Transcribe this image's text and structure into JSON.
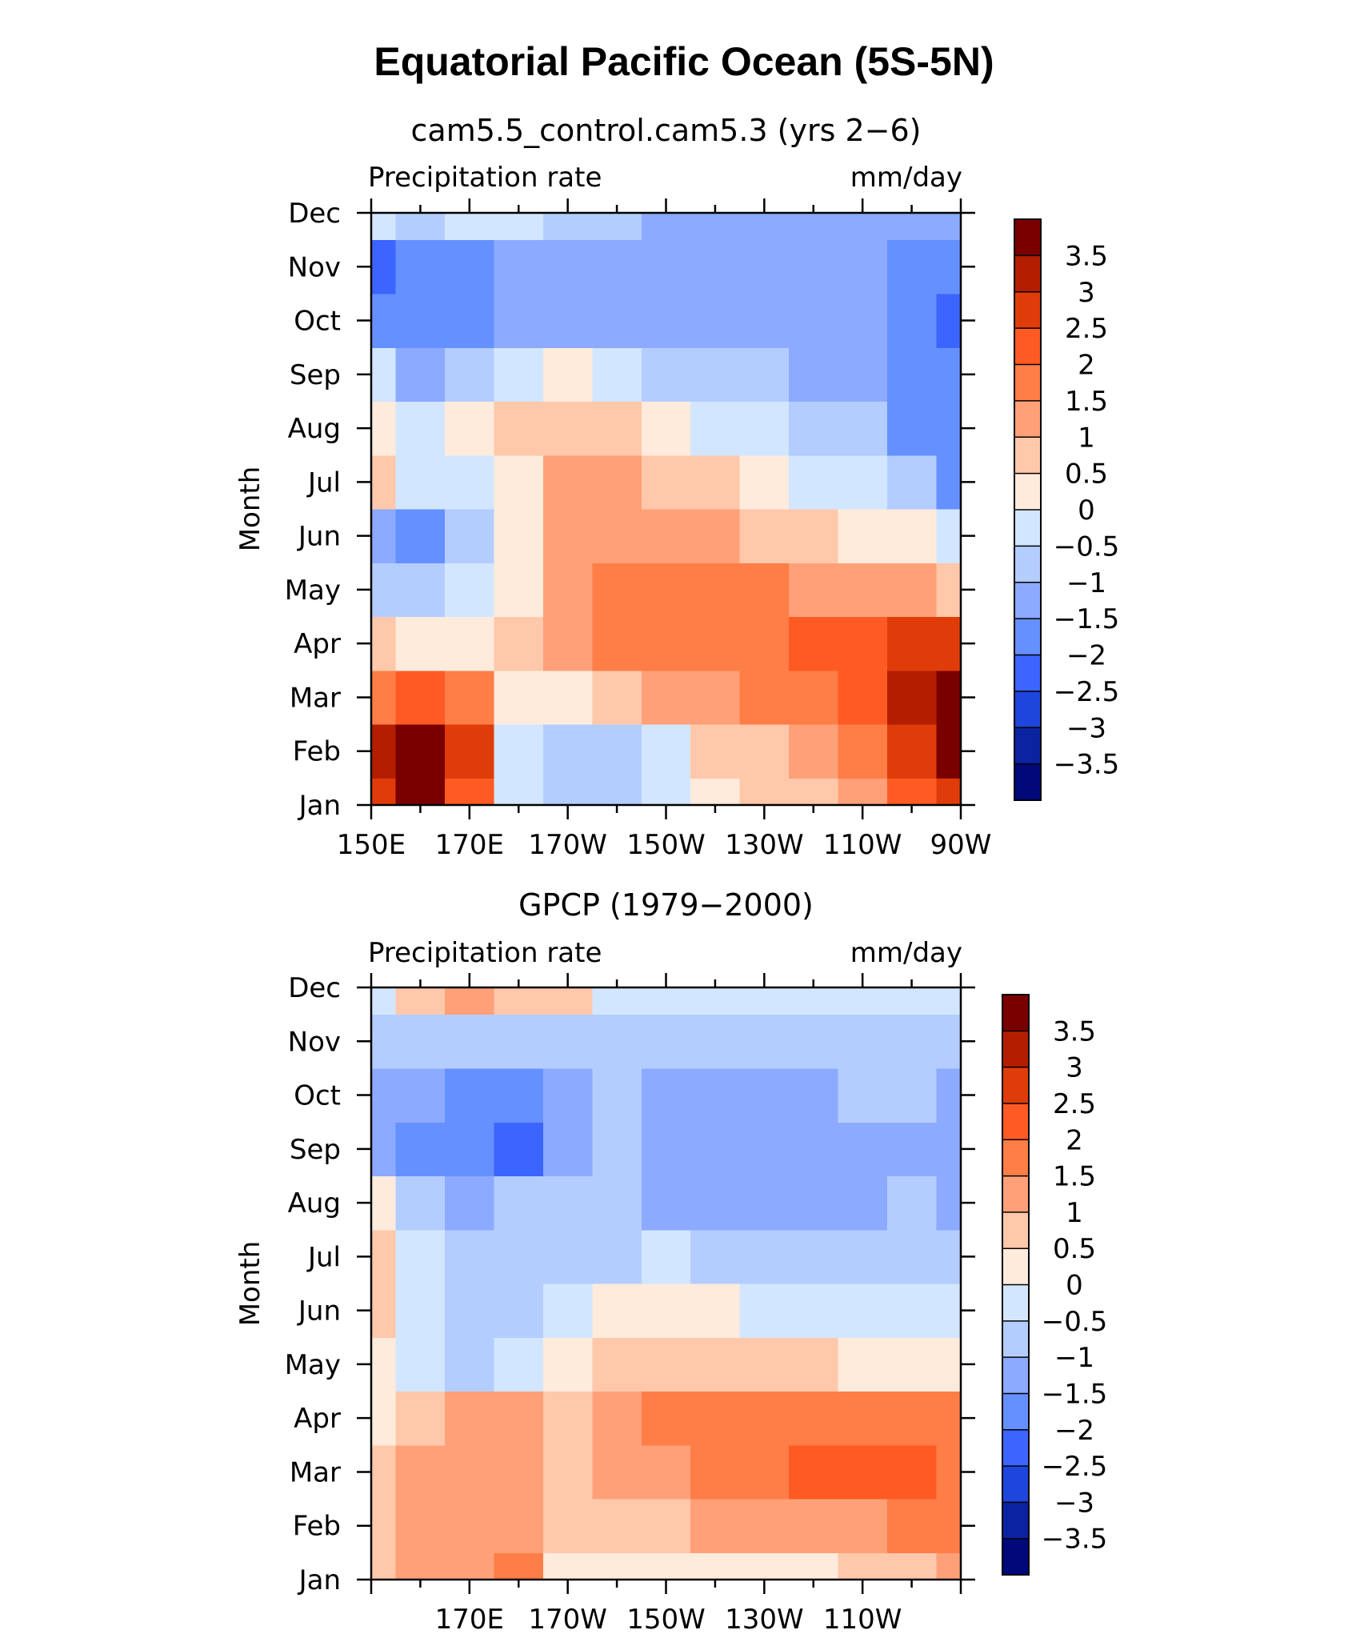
{
  "figure": {
    "title": "Equatorial Pacific Ocean (5S-5N)"
  },
  "colorbar": {
    "levels": [
      "3.5",
      "3",
      "2.5",
      "2",
      "1.5",
      "1",
      "0.5",
      "0",
      "−0.5",
      "−1",
      "−1.5",
      "−2",
      "−2.5",
      "−3",
      "−3.5"
    ],
    "colors": [
      "#7a0000",
      "#b41e00",
      "#e03c0a",
      "#ff5a23",
      "#ff7d46",
      "#ffa078",
      "#ffc8aa",
      "#ffebdc",
      "#d2e6ff",
      "#b4cdff",
      "#8caaff",
      "#6491ff",
      "#3c64ff",
      "#1e46dc",
      "#0a23a0",
      "#00087a"
    ]
  },
  "chart_data": [
    {
      "type": "heatmap",
      "title": "cam5.5_control.cam5.3 (yrs 2−6)",
      "left_label": "Precipitation rate",
      "right_label": "mm/day",
      "ylabel": "Month",
      "xlabel": "",
      "y_ticks": [
        "Jan",
        "Feb",
        "Mar",
        "Apr",
        "May",
        "Jun",
        "Jul",
        "Aug",
        "Sep",
        "Oct",
        "Nov",
        "Dec"
      ],
      "x_ticks": [
        "150E",
        "170E",
        "170W",
        "150W",
        "130W",
        "110W",
        "90W"
      ],
      "x": [
        150,
        160,
        170,
        180,
        190,
        200,
        210,
        220,
        230,
        240,
        250,
        260,
        270
      ],
      "y": [
        "Jan",
        "Feb",
        "Mar",
        "Apr",
        "May",
        "Jun",
        "Jul",
        "Aug",
        "Sep",
        "Oct",
        "Nov",
        "Dec"
      ],
      "values": [
        [
          2.6,
          3.6,
          2.4,
          -0.2,
          -0.6,
          -0.8,
          -0.3,
          0.2,
          0.5,
          0.9,
          1.3,
          2.0,
          2.6
        ],
        [
          3.0,
          3.8,
          2.6,
          -0.2,
          -0.9,
          -1.0,
          -0.3,
          0.5,
          0.9,
          1.3,
          1.7,
          2.6,
          3.6
        ],
        [
          1.8,
          2.2,
          1.6,
          0.4,
          0.2,
          0.6,
          1.0,
          1.4,
          1.6,
          1.9,
          2.4,
          3.0,
          3.7
        ],
        [
          0.6,
          0.4,
          0.3,
          0.8,
          1.0,
          1.6,
          1.9,
          1.9,
          1.9,
          2.0,
          2.3,
          2.6,
          2.6
        ],
        [
          -0.7,
          -0.6,
          -0.2,
          0.3,
          1.3,
          1.7,
          1.8,
          1.8,
          1.7,
          1.4,
          1.2,
          1.0,
          0.6
        ],
        [
          -1.1,
          -1.6,
          -0.7,
          0.3,
          1.2,
          1.3,
          1.2,
          1.0,
          0.8,
          0.5,
          0.2,
          0.2,
          -0.3
        ],
        [
          0.6,
          -0.3,
          -0.5,
          0.2,
          1.0,
          1.1,
          0.9,
          0.5,
          0.1,
          -0.1,
          -0.4,
          -0.7,
          -1.6
        ],
        [
          0.2,
          -0.3,
          0.4,
          0.7,
          0.8,
          0.6,
          0.3,
          -0.2,
          -0.5,
          -0.7,
          -1.0,
          -1.7,
          -2.0
        ],
        [
          -0.3,
          -1.4,
          -0.7,
          -0.1,
          0.1,
          -0.3,
          -0.7,
          -0.9,
          -1.0,
          -1.1,
          -1.2,
          -1.9,
          -2.0
        ],
        [
          -1.9,
          -2.0,
          -1.6,
          -1.2,
          -1.2,
          -1.3,
          -1.3,
          -1.3,
          -1.3,
          -1.3,
          -1.4,
          -1.8,
          -2.1
        ],
        [
          -2.1,
          -1.9,
          -1.6,
          -1.4,
          -1.3,
          -1.2,
          -1.2,
          -1.2,
          -1.3,
          -1.3,
          -1.3,
          -1.7,
          -1.9
        ],
        [
          -0.5,
          -0.7,
          -0.3,
          -0.5,
          -0.8,
          -1.0,
          -1.1,
          -1.2,
          -1.2,
          -1.2,
          -1.2,
          -1.2,
          -1.3
        ]
      ],
      "xlim": [
        150,
        270
      ],
      "grid": false,
      "colorbar": "right"
    },
    {
      "type": "heatmap",
      "title": "GPCP (1979−2000)",
      "left_label": "Precipitation rate",
      "right_label": "mm/day",
      "ylabel": "Month",
      "xlabel": "",
      "y_ticks": [
        "Jan",
        "Feb",
        "Mar",
        "Apr",
        "May",
        "Jun",
        "Jul",
        "Aug",
        "Sep",
        "Oct",
        "Nov",
        "Dec"
      ],
      "x_ticks": [
        "170E",
        "170W",
        "150W",
        "130W",
        "110W"
      ],
      "x": [
        150,
        160,
        170,
        180,
        190,
        200,
        210,
        220,
        230,
        240,
        250,
        260,
        270
      ],
      "y": [
        "Jan",
        "Feb",
        "Mar",
        "Apr",
        "May",
        "Jun",
        "Jul",
        "Aug",
        "Sep",
        "Oct",
        "Nov",
        "Dec"
      ],
      "values": [
        [
          0.8,
          1.1,
          1.4,
          1.7,
          0.3,
          0.3,
          0.2,
          0.1,
          0.2,
          0.3,
          0.5,
          0.8,
          1.0
        ],
        [
          0.9,
          1.2,
          1.1,
          1.2,
          0.6,
          0.7,
          0.8,
          1.0,
          1.1,
          1.2,
          1.3,
          1.5,
          1.6
        ],
        [
          0.8,
          1.3,
          1.4,
          1.1,
          0.8,
          1.0,
          1.3,
          1.6,
          1.8,
          2.0,
          2.1,
          2.0,
          1.8
        ],
        [
          0.3,
          0.6,
          1.1,
          1.0,
          0.9,
          1.0,
          1.5,
          1.7,
          1.8,
          1.9,
          1.8,
          1.8,
          1.8
        ],
        [
          0.2,
          -0.2,
          -0.6,
          -0.4,
          0.2,
          0.5,
          0.6,
          0.7,
          0.8,
          0.6,
          0.4,
          0.4,
          0.2
        ],
        [
          0.6,
          -0.2,
          -0.8,
          -0.9,
          -0.4,
          0.2,
          0.2,
          0.0,
          -0.2,
          -0.3,
          -0.3,
          -0.4,
          -0.3
        ],
        [
          0.7,
          -0.2,
          -0.8,
          -0.8,
          -0.9,
          -0.7,
          -0.5,
          -0.7,
          -0.8,
          -0.8,
          -0.8,
          -0.9,
          -0.9
        ],
        [
          0.4,
          -0.6,
          -1.1,
          -1.0,
          -0.9,
          -0.9,
          -1.1,
          -1.3,
          -1.3,
          -1.3,
          -1.2,
          -1.0,
          -1.2
        ],
        [
          -1.2,
          -1.6,
          -1.9,
          -2.1,
          -1.2,
          -1.0,
          -1.4,
          -1.3,
          -1.4,
          -1.4,
          -1.1,
          -1.1,
          -1.3
        ],
        [
          -1.4,
          -1.3,
          -1.9,
          -1.9,
          -1.2,
          -1.0,
          -1.3,
          -1.4,
          -1.4,
          -1.3,
          -1.0,
          -1.0,
          -1.3
        ],
        [
          -0.6,
          -0.9,
          -1.0,
          -0.9,
          -0.9,
          -0.9,
          -0.8,
          -0.7,
          -0.7,
          -0.7,
          -0.7,
          -0.7,
          -0.9
        ],
        [
          -0.4,
          0.8,
          1.4,
          0.9,
          0.5,
          -0.3,
          -0.5,
          -0.5,
          -0.4,
          -0.3,
          -0.4,
          -0.4,
          -0.4
        ]
      ],
      "xlim": [
        150,
        270
      ],
      "grid": false,
      "colorbar": "right"
    }
  ]
}
